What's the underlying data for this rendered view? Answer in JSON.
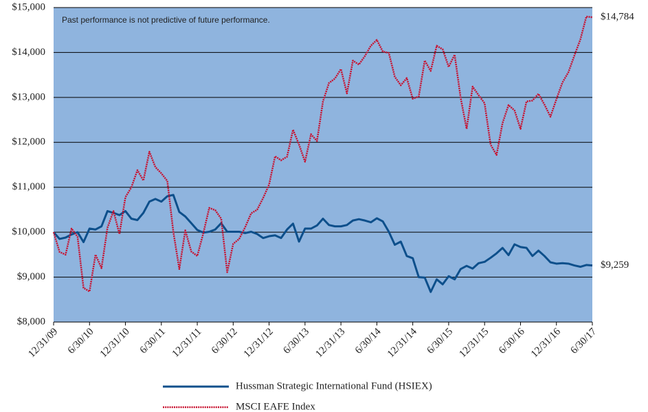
{
  "chart_data": {
    "type": "line",
    "annotations": [
      "Past performance is not predictive of future performance."
    ],
    "categories": [
      "12/31/09",
      null,
      null,
      null,
      null,
      null,
      "6/30/10",
      null,
      null,
      null,
      null,
      null,
      "12/31/10",
      null,
      null,
      null,
      null,
      null,
      "6/30/11",
      null,
      null,
      null,
      null,
      null,
      "12/31/11",
      null,
      null,
      null,
      null,
      null,
      "6/30/12",
      null,
      null,
      null,
      null,
      null,
      "12/31/12",
      null,
      null,
      null,
      null,
      null,
      "6/30/13",
      null,
      null,
      null,
      null,
      null,
      "12/31/13",
      null,
      null,
      null,
      null,
      null,
      "6/30/14",
      null,
      null,
      null,
      null,
      null,
      "12/31/14",
      null,
      null,
      null,
      null,
      null,
      "6/30/15",
      null,
      null,
      null,
      null,
      null,
      "12/31/15",
      null,
      null,
      null,
      null,
      null,
      "6/30/16",
      null,
      null,
      null,
      null,
      null,
      "12/31/16",
      null,
      null,
      null,
      null,
      null,
      "6/30/17"
    ],
    "series": [
      {
        "name": "Hussman Strategic International Fund (HSIEX)",
        "color": "#0d4f8b",
        "end_label": "$9,259",
        "values": [
          10000,
          9850,
          9880,
          9950,
          10000,
          9780,
          10080,
          10060,
          10130,
          10470,
          10430,
          10380,
          10470,
          10300,
          10270,
          10430,
          10680,
          10740,
          10680,
          10800,
          10830,
          10450,
          10350,
          10200,
          10050,
          9990,
          10010,
          10060,
          10200,
          10010,
          10010,
          10010,
          9980,
          10010,
          9960,
          9870,
          9910,
          9930,
          9870,
          10060,
          10190,
          9790,
          10080,
          10080,
          10150,
          10300,
          10160,
          10130,
          10130,
          10160,
          10260,
          10290,
          10260,
          10220,
          10310,
          10240,
          10010,
          9720,
          9790,
          9470,
          9420,
          9000,
          8990,
          8670,
          8950,
          8840,
          9020,
          8950,
          9180,
          9250,
          9190,
          9310,
          9340,
          9430,
          9530,
          9650,
          9490,
          9730,
          9670,
          9650,
          9470,
          9590,
          9470,
          9330,
          9300,
          9310,
          9300,
          9260,
          9230,
          9270,
          9259
        ]
      },
      {
        "name": "MSCI EAFE Index",
        "color": "#c8102e",
        "dotted": true,
        "end_label": "$14,784",
        "values": [
          10000,
          9560,
          9500,
          10080,
          9900,
          8760,
          8680,
          9500,
          9200,
          10100,
          10470,
          9960,
          10780,
          11000,
          11380,
          11150,
          11790,
          11450,
          11310,
          11140,
          10010,
          9180,
          10040,
          9570,
          9470,
          9970,
          10540,
          10490,
          10300,
          9110,
          9740,
          9850,
          10110,
          10420,
          10500,
          10760,
          11060,
          11690,
          11600,
          11680,
          12280,
          11950,
          11570,
          12180,
          12030,
          12910,
          13320,
          13420,
          13630,
          13090,
          13820,
          13730,
          13920,
          14150,
          14280,
          14020,
          13990,
          13460,
          13270,
          13430,
          12970,
          13020,
          13820,
          13590,
          14150,
          14070,
          13680,
          13950,
          12990,
          12300,
          13240,
          13050,
          12870,
          11950,
          11720,
          12430,
          12830,
          12710,
          12300,
          12910,
          12930,
          13080,
          12840,
          12570,
          12960,
          13330,
          13560,
          13930,
          14290,
          14800,
          14784
        ]
      }
    ],
    "ylim": [
      8000,
      15000
    ],
    "yticks": [
      {
        "value": 8000,
        "label": "$8,000"
      },
      {
        "value": 9000,
        "label": "$9,000"
      },
      {
        "value": 10000,
        "label": "$10,000"
      },
      {
        "value": 11000,
        "label": "$11,000"
      },
      {
        "value": 12000,
        "label": "$12,000"
      },
      {
        "value": 13000,
        "label": "$13,000"
      },
      {
        "value": 14000,
        "label": "$14,000"
      },
      {
        "value": 15000,
        "label": "$15,000"
      }
    ],
    "grid": true,
    "background": "#8fb4de",
    "legend": "bottom"
  }
}
